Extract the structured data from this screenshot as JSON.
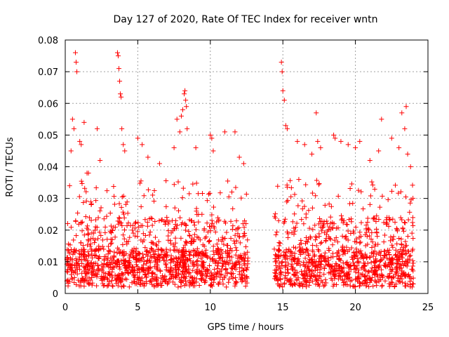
{
  "chart_data": {
    "type": "scatter",
    "title": "Day 127 of 2020, Rate Of TEC Index for receiver wntn",
    "xlabel": "GPS time / hours",
    "ylabel": "ROTI / TECUs",
    "xlim": [
      0,
      25
    ],
    "ylim": [
      0,
      0.08
    ],
    "x_ticks": [
      "0",
      "5",
      "10",
      "15",
      "20",
      "25"
    ],
    "y_ticks": [
      "0",
      "0.01",
      "0.02",
      "0.03",
      "0.04",
      "0.05",
      "0.06",
      "0.07",
      "0.08"
    ],
    "grid": true,
    "marker": "+",
    "color": "#ff0000",
    "data_gap_hours": [
      12.6,
      14.4
    ],
    "series": [
      {
        "points": [
          [
            0.3,
            0.034
          ],
          [
            0.4,
            0.045
          ],
          [
            0.5,
            0.055
          ],
          [
            0.6,
            0.052
          ],
          [
            0.7,
            0.076
          ],
          [
            0.75,
            0.073
          ],
          [
            0.8,
            0.07
          ],
          [
            1.0,
            0.048
          ],
          [
            1.1,
            0.047
          ],
          [
            1.3,
            0.054
          ],
          [
            1.5,
            0.038
          ],
          [
            1.6,
            0.038
          ],
          [
            2.2,
            0.052
          ],
          [
            2.4,
            0.042
          ],
          [
            3.6,
            0.076
          ],
          [
            3.65,
            0.075
          ],
          [
            3.7,
            0.071
          ],
          [
            3.75,
            0.067
          ],
          [
            3.8,
            0.063
          ],
          [
            3.85,
            0.062
          ],
          [
            3.9,
            0.052
          ],
          [
            4.0,
            0.047
          ],
          [
            4.1,
            0.045
          ],
          [
            5.0,
            0.049
          ],
          [
            5.3,
            0.047
          ],
          [
            5.7,
            0.043
          ],
          [
            6.5,
            0.041
          ],
          [
            7.5,
            0.046
          ],
          [
            7.7,
            0.055
          ],
          [
            7.9,
            0.051
          ],
          [
            8.0,
            0.056
          ],
          [
            8.1,
            0.058
          ],
          [
            8.2,
            0.063
          ],
          [
            8.25,
            0.064
          ],
          [
            8.3,
            0.061
          ],
          [
            8.35,
            0.059
          ],
          [
            8.4,
            0.052
          ],
          [
            9.0,
            0.046
          ],
          [
            10.0,
            0.05
          ],
          [
            10.1,
            0.049
          ],
          [
            10.2,
            0.045
          ],
          [
            11.0,
            0.051
          ],
          [
            11.7,
            0.051
          ],
          [
            12.0,
            0.043
          ],
          [
            12.3,
            0.041
          ],
          [
            14.9,
            0.073
          ],
          [
            14.95,
            0.07
          ],
          [
            15.0,
            0.064
          ],
          [
            15.1,
            0.061
          ],
          [
            15.2,
            0.053
          ],
          [
            15.3,
            0.052
          ],
          [
            16.0,
            0.048
          ],
          [
            16.5,
            0.047
          ],
          [
            17.0,
            0.044
          ],
          [
            17.3,
            0.057
          ],
          [
            17.4,
            0.048
          ],
          [
            17.6,
            0.046
          ],
          [
            18.5,
            0.05
          ],
          [
            18.6,
            0.049
          ],
          [
            19.0,
            0.048
          ],
          [
            19.5,
            0.047
          ],
          [
            20.0,
            0.046
          ],
          [
            20.3,
            0.048
          ],
          [
            21.0,
            0.042
          ],
          [
            21.6,
            0.045
          ],
          [
            21.8,
            0.055
          ],
          [
            22.5,
            0.049
          ],
          [
            23.0,
            0.046
          ],
          [
            23.2,
            0.057
          ],
          [
            23.4,
            0.052
          ],
          [
            23.5,
            0.059
          ],
          [
            23.6,
            0.044
          ],
          [
            23.8,
            0.04
          ]
        ]
      }
    ]
  }
}
